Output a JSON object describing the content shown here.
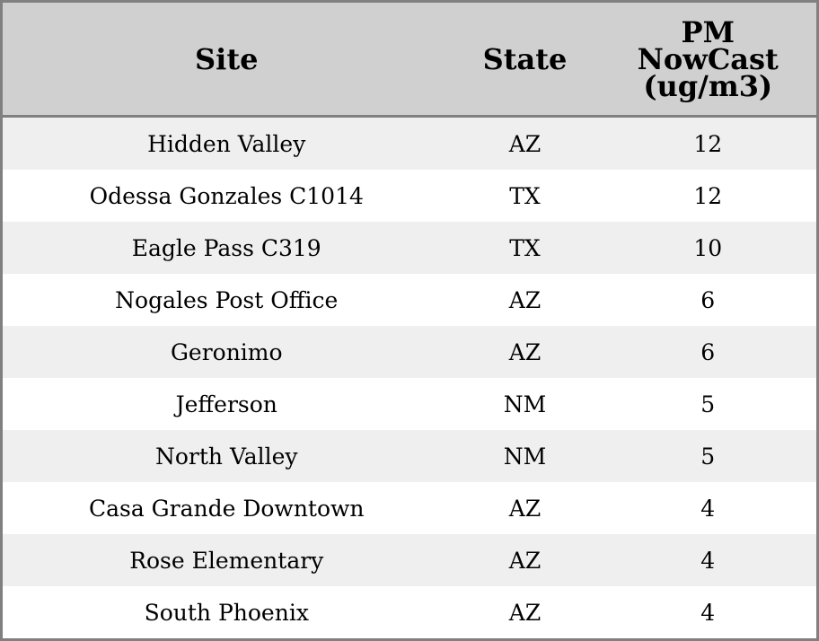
{
  "chart_data": {
    "type": "table",
    "columns": [
      "Site",
      "State",
      "PM NowCast (ug/m3)"
    ],
    "rows": [
      [
        "Hidden Valley",
        "AZ",
        "12"
      ],
      [
        "Odessa Gonzales C1014",
        "TX",
        "12"
      ],
      [
        "Eagle Pass C319",
        "TX",
        "10"
      ],
      [
        "Nogales Post Office",
        "AZ",
        "6"
      ],
      [
        "Geronimo",
        "AZ",
        "6"
      ],
      [
        "Jefferson",
        "NM",
        "5"
      ],
      [
        "North Valley",
        "NM",
        "5"
      ],
      [
        "Casa Grande Downtown",
        "AZ",
        "4"
      ],
      [
        "Rose Elementary",
        "AZ",
        "4"
      ],
      [
        "South Phoenix",
        "AZ",
        "4"
      ]
    ],
    "colors": {
      "header_bg": "#d0d0d0",
      "row_alt_bg": "#efefef",
      "border": "#808080"
    }
  }
}
